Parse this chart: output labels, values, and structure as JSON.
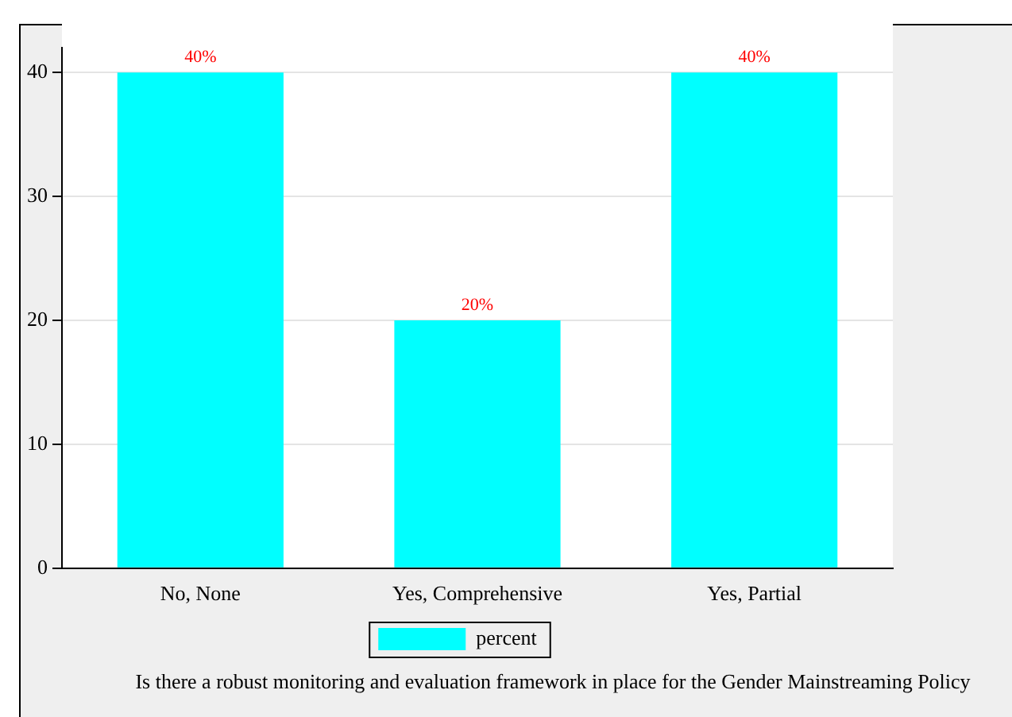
{
  "chart_data": {
    "type": "bar",
    "categories": [
      "No, None",
      "Yes, Comprehensive",
      "Yes, Partial"
    ],
    "series": [
      {
        "name": "percent",
        "color": "#00ffff",
        "values": [
          40,
          20,
          40
        ],
        "value_labels": [
          "40%",
          "20%",
          "40%"
        ]
      }
    ],
    "ylim": [
      0,
      42
    ],
    "yticks": [
      0,
      10,
      20,
      30,
      40
    ],
    "grid": "y",
    "legend": "bottom",
    "annotations": [
      "Is there a robust monitoring and evaluation framework in place for the Gender Mainstreaming Policy"
    ]
  }
}
